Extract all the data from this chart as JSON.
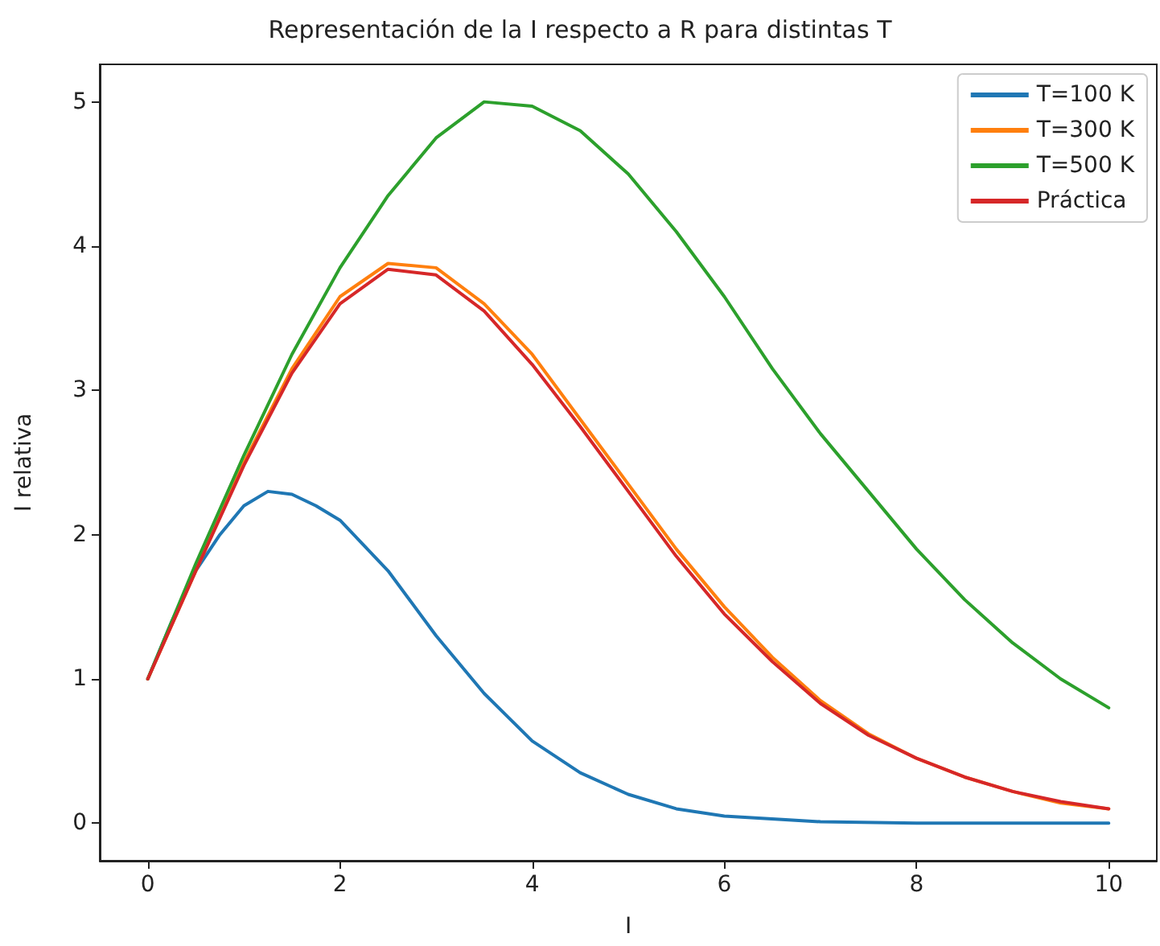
{
  "chart_data": {
    "type": "line",
    "title": "Representación de la I respecto a R para distintas T",
    "xlabel": "I",
    "ylabel": "I relativa",
    "x": [
      0,
      0.5,
      1,
      1.5,
      2,
      2.5,
      3,
      3.5,
      4,
      4.5,
      5,
      5.5,
      6,
      6.5,
      7,
      7.5,
      8,
      8.5,
      9,
      9.5,
      10
    ],
    "series": [
      {
        "name": "T=100 K",
        "color": "#1f77b4",
        "x": [
          0,
          0.25,
          0.5,
          0.75,
          1,
          1.25,
          1.5,
          1.75,
          2,
          2.5,
          3,
          3.5,
          4,
          4.5,
          5,
          5.5,
          6,
          7,
          8,
          9,
          10
        ],
        "values": [
          1.0,
          1.4,
          1.75,
          2.0,
          2.2,
          2.3,
          2.28,
          2.2,
          2.1,
          1.75,
          1.3,
          0.9,
          0.57,
          0.35,
          0.2,
          0.1,
          0.05,
          0.01,
          0,
          0,
          0
        ]
      },
      {
        "name": "T=300 K",
        "color": "#ff7f0e",
        "values": [
          1,
          1.75,
          2.5,
          3.15,
          3.65,
          3.88,
          3.85,
          3.6,
          3.25,
          2.8,
          2.35,
          1.9,
          1.5,
          1.15,
          0.85,
          0.62,
          0.45,
          0.32,
          0.22,
          0.14,
          0.1
        ]
      },
      {
        "name": "T=500 K",
        "color": "#2ca02c",
        "values": [
          1,
          1.8,
          2.55,
          3.25,
          3.85,
          4.35,
          4.75,
          5.0,
          4.97,
          4.8,
          4.5,
          4.1,
          3.65,
          3.15,
          2.7,
          2.3,
          1.9,
          1.55,
          1.25,
          1.0,
          0.8
        ]
      },
      {
        "name": "Práctica",
        "color": "#d62728",
        "values": [
          1,
          1.75,
          2.48,
          3.12,
          3.6,
          3.84,
          3.8,
          3.55,
          3.18,
          2.75,
          2.3,
          1.85,
          1.45,
          1.12,
          0.83,
          0.61,
          0.45,
          0.32,
          0.22,
          0.15,
          0.1
        ]
      }
    ],
    "xlim": [
      -0.5,
      10.5
    ],
    "xticks": [
      0,
      2,
      4,
      6,
      8,
      10
    ],
    "ylim": [
      -0.26,
      5.26
    ],
    "yticks": [
      0,
      1,
      2,
      3,
      4,
      5
    ],
    "grid": false,
    "legend": "top right",
    "marker": "none",
    "line_style": "solid"
  }
}
